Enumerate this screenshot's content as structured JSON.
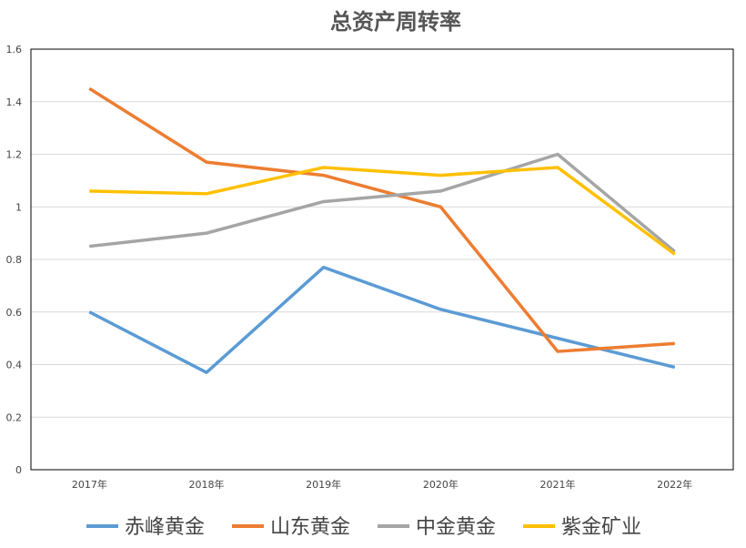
{
  "chart_data": {
    "type": "line",
    "title": "总资产周转率",
    "categories": [
      "2017年",
      "2018年",
      "2019年",
      "2020年",
      "2021年",
      "2022年"
    ],
    "ylim": [
      0,
      1.6
    ],
    "yticks": [
      "0",
      "0.2",
      "0.4",
      "0.6",
      "0.8",
      "1",
      "1.2",
      "1.4",
      "1.6"
    ],
    "grid": true,
    "legend": "bottom",
    "series": [
      {
        "name": "赤峰黄金",
        "color": "#5B9BD5",
        "values": [
          0.6,
          0.37,
          0.77,
          0.61,
          0.5,
          0.39
        ]
      },
      {
        "name": "山东黄金",
        "color": "#ED7D31",
        "values": [
          1.45,
          1.17,
          1.12,
          1.0,
          0.45,
          0.48
        ]
      },
      {
        "name": "中金黄金",
        "color": "#A5A5A5",
        "values": [
          0.85,
          0.9,
          1.02,
          1.06,
          1.2,
          0.83
        ]
      },
      {
        "name": "紫金矿业",
        "color": "#FFC000",
        "values": [
          1.06,
          1.05,
          1.15,
          1.12,
          1.15,
          0.82
        ]
      }
    ]
  }
}
